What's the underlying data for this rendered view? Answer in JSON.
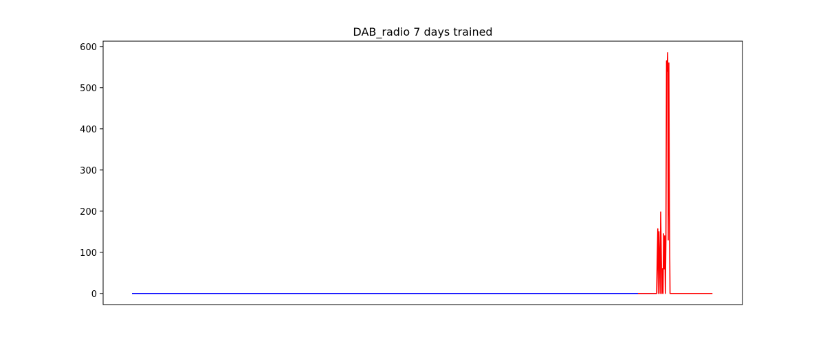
{
  "chart_data": {
    "type": "line",
    "title": "DAB_radio 7 days trained",
    "xlabel": "",
    "ylabel": "",
    "x_ticks_shown": false,
    "xlim": [
      0,
      1000
    ],
    "ylim": [
      -27,
      613
    ],
    "yticks": [
      0,
      100,
      200,
      300,
      400,
      500,
      600
    ],
    "grid": false,
    "series": [
      {
        "color": "#0000ff",
        "points": [
          [
            0,
            0
          ],
          [
            902,
            0
          ]
        ]
      },
      {
        "color": "#ff0000",
        "points": [
          [
            870,
            0
          ],
          [
            900,
            0
          ],
          [
            902,
            0
          ],
          [
            903,
            80
          ],
          [
            904,
            157
          ],
          [
            905,
            0
          ],
          [
            906,
            150
          ],
          [
            907,
            90
          ],
          [
            908,
            0
          ],
          [
            909,
            198
          ],
          [
            910,
            90
          ],
          [
            911,
            0
          ],
          [
            912,
            60
          ],
          [
            913,
            0
          ],
          [
            914,
            145
          ],
          [
            915,
            60
          ],
          [
            916,
            140
          ],
          [
            917,
            0
          ],
          [
            918,
            130
          ],
          [
            919,
            565
          ],
          [
            920,
            540
          ],
          [
            921,
            585
          ],
          [
            922,
            130
          ],
          [
            923,
            560
          ],
          [
            924,
            200
          ],
          [
            925,
            0
          ],
          [
            926,
            0
          ],
          [
            998,
            0
          ]
        ]
      }
    ]
  }
}
